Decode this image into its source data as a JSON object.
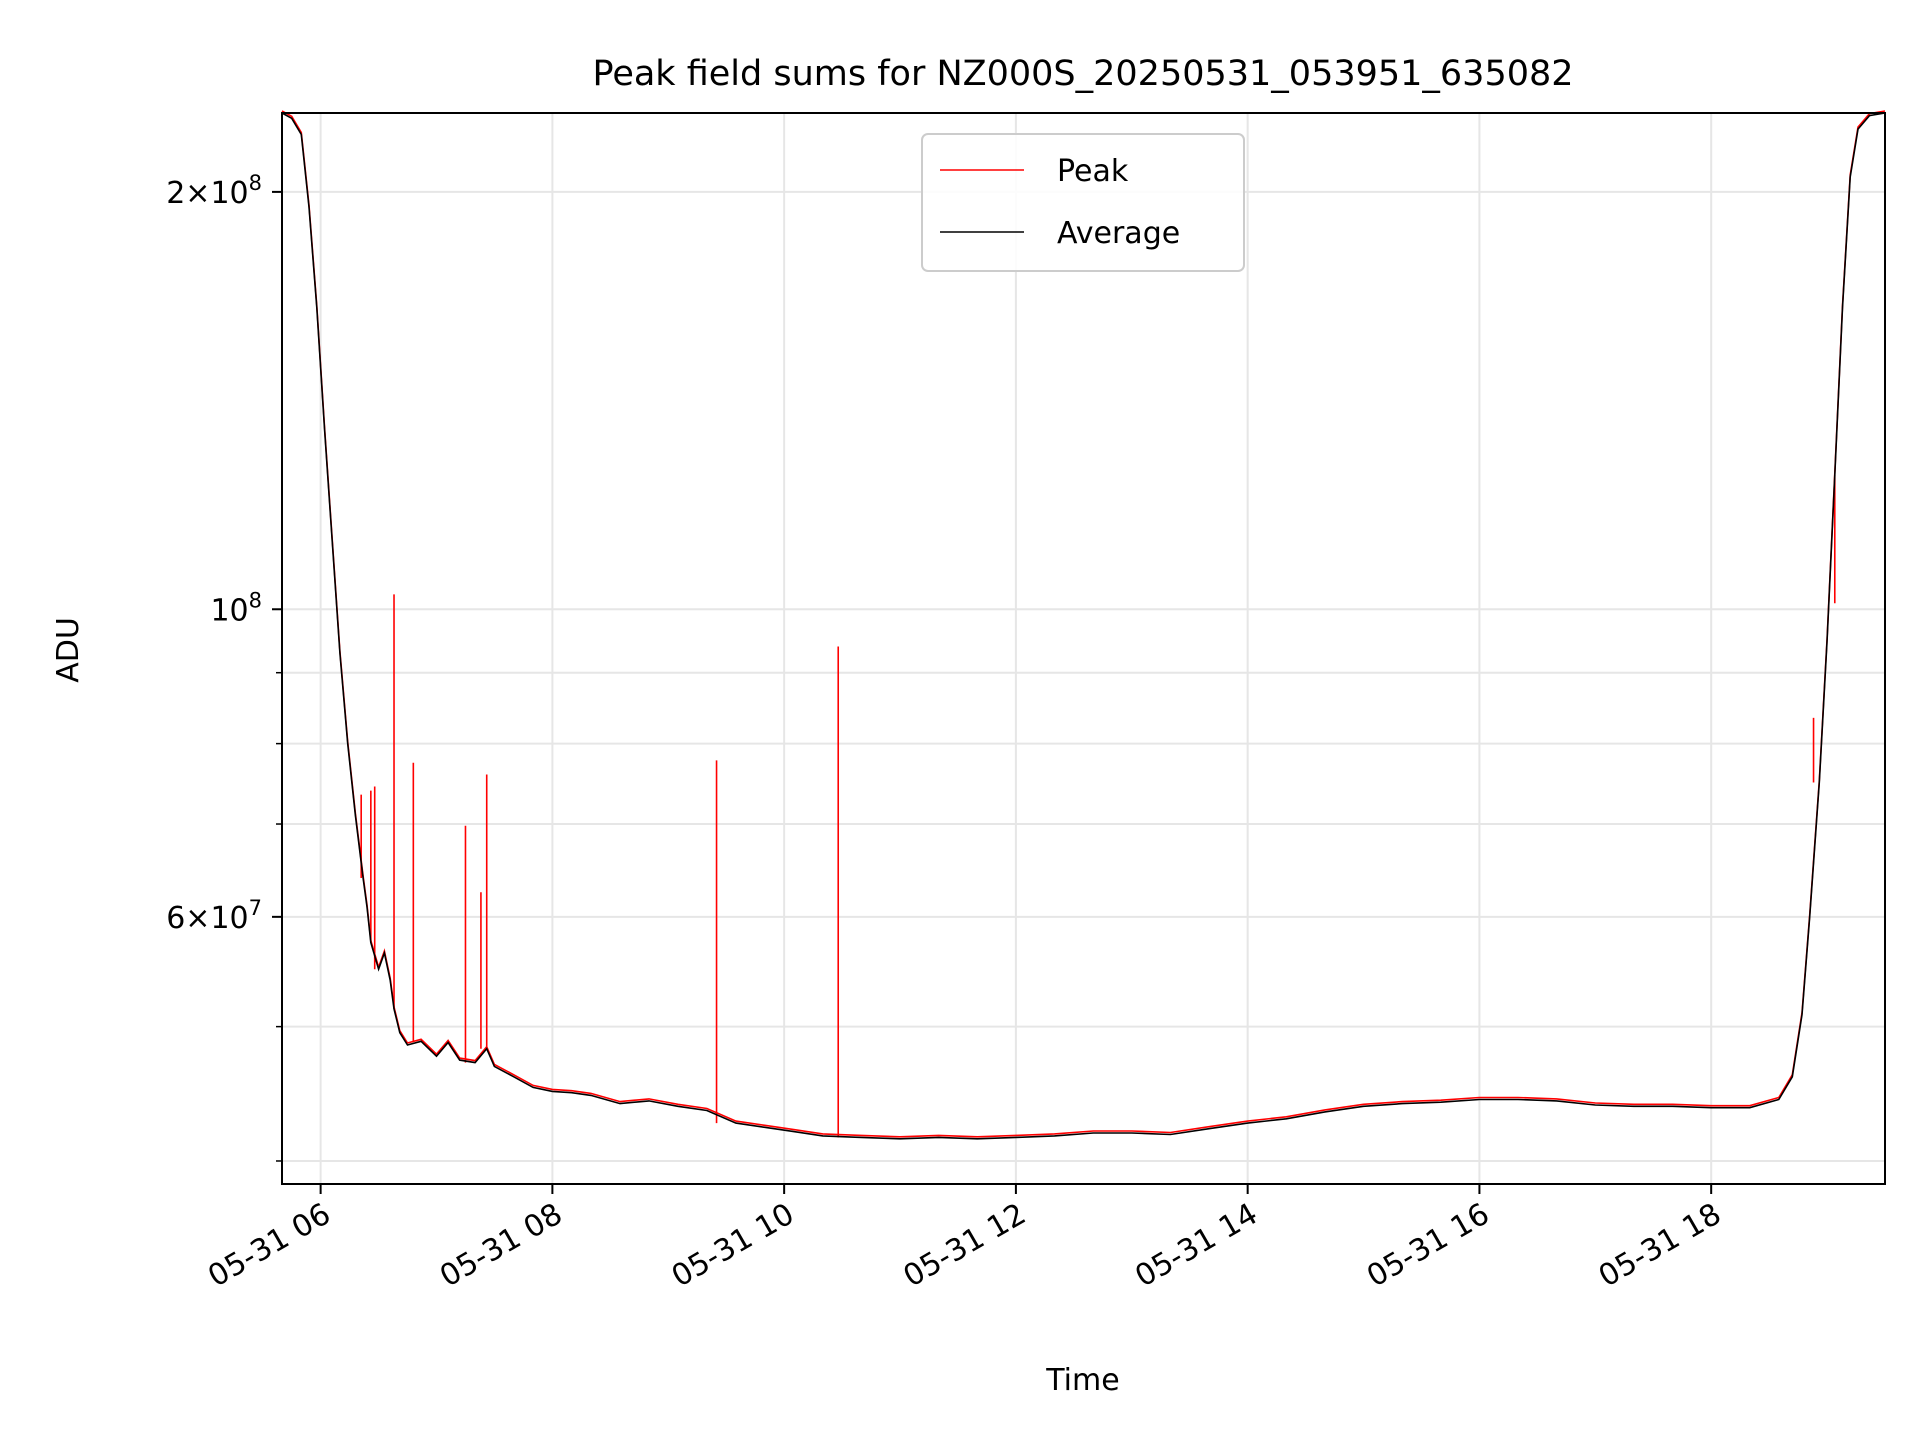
{
  "chart_data": {
    "type": "line",
    "title": "Peak field sums for NZ000S_20250531_053951_635082",
    "xlabel": "Time",
    "ylabel": "ADU",
    "y_scale": "log",
    "ylim": [
      38500000,
      228000000
    ],
    "xlim": [
      "2025-05-31T05:40",
      "2025-05-31T19:30"
    ],
    "x_ticks": [
      {
        "value": "2025-05-31T06:00",
        "label": "05-31 06"
      },
      {
        "value": "2025-05-31T08:00",
        "label": "05-31 08"
      },
      {
        "value": "2025-05-31T10:00",
        "label": "05-31 10"
      },
      {
        "value": "2025-05-31T12:00",
        "label": "05-31 12"
      },
      {
        "value": "2025-05-31T14:00",
        "label": "05-31 14"
      },
      {
        "value": "2025-05-31T16:00",
        "label": "05-31 16"
      },
      {
        "value": "2025-05-31T18:00",
        "label": "05-31 18"
      }
    ],
    "y_major_ticks": [
      {
        "value": 200000000,
        "base": "2",
        "times": "×",
        "ten": "10",
        "exp": "8"
      },
      {
        "value": 100000000,
        "base": "",
        "times": "",
        "ten": "10",
        "exp": "8"
      },
      {
        "value": 60000000,
        "base": "6",
        "times": "×",
        "ten": "10",
        "exp": "7"
      }
    ],
    "y_minor_ticks": [
      40000000,
      50000000,
      70000000,
      80000000,
      90000000
    ],
    "grid": true,
    "legend_position": "top-center",
    "series": [
      {
        "name": "Peak",
        "color": "#ff0000",
        "spikes": [
          {
            "x": "2025-05-31T06:21",
            "y": 73500000
          },
          {
            "x": "2025-05-31T06:26",
            "y": 74000000
          },
          {
            "x": "2025-05-31T06:28",
            "y": 74500000
          },
          {
            "x": "2025-05-31T06:38",
            "y": 102500000
          },
          {
            "x": "2025-05-31T06:48",
            "y": 77500000
          },
          {
            "x": "2025-05-31T07:15",
            "y": 69800000
          },
          {
            "x": "2025-05-31T07:23",
            "y": 62500000
          },
          {
            "x": "2025-05-31T07:26",
            "y": 76000000
          },
          {
            "x": "2025-05-31T09:25",
            "y": 77800000
          },
          {
            "x": "2025-05-31T10:28",
            "y": 94000000
          },
          {
            "x": "2025-05-31T18:53",
            "y": 83500000
          },
          {
            "x": "2025-05-31T19:04",
            "y": 101000000
          }
        ]
      },
      {
        "name": "Average",
        "color": "#000000",
        "points": [
          [
            "2025-05-31T05:40",
            228000000
          ],
          [
            "2025-05-31T05:45",
            226000000
          ],
          [
            "2025-05-31T05:50",
            220000000
          ],
          [
            "2025-05-31T05:54",
            195000000
          ],
          [
            "2025-05-31T05:58",
            165000000
          ],
          [
            "2025-05-31T06:02",
            135000000
          ],
          [
            "2025-05-31T06:06",
            112000000
          ],
          [
            "2025-05-31T06:10",
            93000000
          ],
          [
            "2025-05-31T06:14",
            80000000
          ],
          [
            "2025-05-31T06:18",
            71000000
          ],
          [
            "2025-05-31T06:22",
            64000000
          ],
          [
            "2025-05-31T06:24",
            61000000
          ],
          [
            "2025-05-31T06:26",
            57500000
          ],
          [
            "2025-05-31T06:30",
            55000000
          ],
          [
            "2025-05-31T06:33",
            56500000
          ],
          [
            "2025-05-31T06:36",
            54000000
          ],
          [
            "2025-05-31T06:38",
            51500000
          ],
          [
            "2025-05-31T06:41",
            49500000
          ],
          [
            "2025-05-31T06:45",
            48500000
          ],
          [
            "2025-05-31T06:52",
            48800000
          ],
          [
            "2025-05-31T07:00",
            47600000
          ],
          [
            "2025-05-31T07:06",
            48700000
          ],
          [
            "2025-05-31T07:12",
            47300000
          ],
          [
            "2025-05-31T07:20",
            47100000
          ],
          [
            "2025-05-31T07:26",
            48200000
          ],
          [
            "2025-05-31T07:30",
            46800000
          ],
          [
            "2025-05-31T07:40",
            46000000
          ],
          [
            "2025-05-31T07:50",
            45200000
          ],
          [
            "2025-05-31T08:00",
            44900000
          ],
          [
            "2025-05-31T08:10",
            44800000
          ],
          [
            "2025-05-31T08:20",
            44600000
          ],
          [
            "2025-05-31T08:35",
            44000000
          ],
          [
            "2025-05-31T08:50",
            44200000
          ],
          [
            "2025-05-31T09:05",
            43800000
          ],
          [
            "2025-05-31T09:20",
            43500000
          ],
          [
            "2025-05-31T09:35",
            42600000
          ],
          [
            "2025-05-31T09:50",
            42300000
          ],
          [
            "2025-05-31T10:05",
            42000000
          ],
          [
            "2025-05-31T10:20",
            41700000
          ],
          [
            "2025-05-31T10:40",
            41600000
          ],
          [
            "2025-05-31T11:00",
            41500000
          ],
          [
            "2025-05-31T11:20",
            41600000
          ],
          [
            "2025-05-31T11:40",
            41500000
          ],
          [
            "2025-05-31T12:00",
            41600000
          ],
          [
            "2025-05-31T12:20",
            41700000
          ],
          [
            "2025-05-31T12:40",
            41900000
          ],
          [
            "2025-05-31T13:00",
            41900000
          ],
          [
            "2025-05-31T13:20",
            41800000
          ],
          [
            "2025-05-31T13:40",
            42200000
          ],
          [
            "2025-05-31T14:00",
            42600000
          ],
          [
            "2025-05-31T14:20",
            42900000
          ],
          [
            "2025-05-31T14:40",
            43400000
          ],
          [
            "2025-05-31T15:00",
            43800000
          ],
          [
            "2025-05-31T15:20",
            44000000
          ],
          [
            "2025-05-31T15:40",
            44100000
          ],
          [
            "2025-05-31T16:00",
            44300000
          ],
          [
            "2025-05-31T16:20",
            44300000
          ],
          [
            "2025-05-31T16:40",
            44200000
          ],
          [
            "2025-05-31T17:00",
            43900000
          ],
          [
            "2025-05-31T17:20",
            43800000
          ],
          [
            "2025-05-31T17:40",
            43800000
          ],
          [
            "2025-05-31T18:00",
            43700000
          ],
          [
            "2025-05-31T18:20",
            43700000
          ],
          [
            "2025-05-31T18:35",
            44300000
          ],
          [
            "2025-05-31T18:42",
            46000000
          ],
          [
            "2025-05-31T18:47",
            51000000
          ],
          [
            "2025-05-31T18:51",
            60000000
          ],
          [
            "2025-05-31T18:56",
            75000000
          ],
          [
            "2025-05-31T19:00",
            95000000
          ],
          [
            "2025-05-31T19:04",
            125000000
          ],
          [
            "2025-05-31T19:08",
            165000000
          ],
          [
            "2025-05-31T19:12",
            205000000
          ],
          [
            "2025-05-31T19:16",
            222000000
          ],
          [
            "2025-05-31T19:22",
            227000000
          ],
          [
            "2025-05-31T19:30",
            228000000
          ]
        ]
      }
    ]
  }
}
